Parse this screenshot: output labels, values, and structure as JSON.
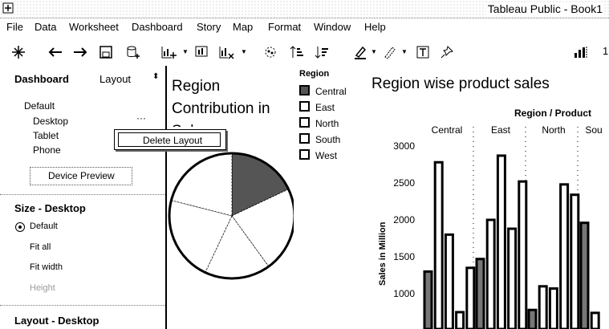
{
  "window": {
    "title": "Tableau Public - Book1"
  },
  "menu": [
    "File",
    "Data",
    "Worksheet",
    "Dashboard",
    "Story",
    "Map",
    "Format",
    "Window",
    "Help"
  ],
  "toolbar": {
    "icons": [
      "tableau-logo-icon",
      "undo-icon",
      "redo-icon",
      "save-icon",
      "new-datasource-icon",
      "new-worksheet-icon",
      "new-dashboard-icon",
      "clear-sheet-icon",
      "group-icon",
      "sort-ascending-icon",
      "sort-descending-icon",
      "highlight-icon",
      "pen-icon",
      "text-label-icon",
      "pin-icon",
      "show-me-icon"
    ],
    "trailing_text": "1"
  },
  "left_pane": {
    "tab_dashboard": "Dashboard",
    "tab_layout": "Layout",
    "device_default": "Default",
    "devices": [
      "Desktop",
      "Tablet",
      "Phone"
    ],
    "desktop_menu": "···",
    "device_preview": "Device Preview",
    "size_heading": "Size - Desktop",
    "size_options": [
      "Default",
      "Fit all",
      "Fit width",
      "Height"
    ],
    "size_selected": "Default",
    "layout_heading": "Layout - Desktop"
  },
  "context_menu": {
    "item": "Delete Layout"
  },
  "pie": {
    "title": "Region Contribution in Sales",
    "legend_title": "Region",
    "legend": [
      "Central",
      "East",
      "North",
      "South",
      "West"
    ]
  },
  "bar_chart": {
    "title": "Region wise product sales",
    "header": "Region / Product",
    "regions": [
      "Central",
      "East",
      "North",
      "Sou"
    ],
    "yticks": [
      "3000",
      "2500",
      "2000",
      "1500",
      "1000"
    ],
    "ylabel": "Sales in Million"
  },
  "chart_data": [
    {
      "type": "pie",
      "title": "Region Contribution in Sales",
      "categories": [
        "Central",
        "East",
        "North",
        "South",
        "West"
      ],
      "values": [
        18,
        22,
        17,
        22,
        21
      ]
    },
    {
      "type": "bar",
      "title": "Region wise product sales",
      "ylabel": "Sales in Million",
      "ylim": [
        800,
        3150
      ],
      "series": [
        {
          "name": "Central",
          "values": [
            1300,
            2780,
            1800,
            750,
            1350
          ]
        },
        {
          "name": "East",
          "values": [
            1470,
            2000,
            2870,
            1880,
            2520
          ]
        },
        {
          "name": "North",
          "values": [
            780,
            1100,
            1070,
            2480,
            2340
          ]
        },
        {
          "name": "South",
          "values": [
            1960,
            740
          ]
        }
      ]
    }
  ],
  "colors": {
    "selected_slice": "#555555",
    "outline": "#000000"
  }
}
